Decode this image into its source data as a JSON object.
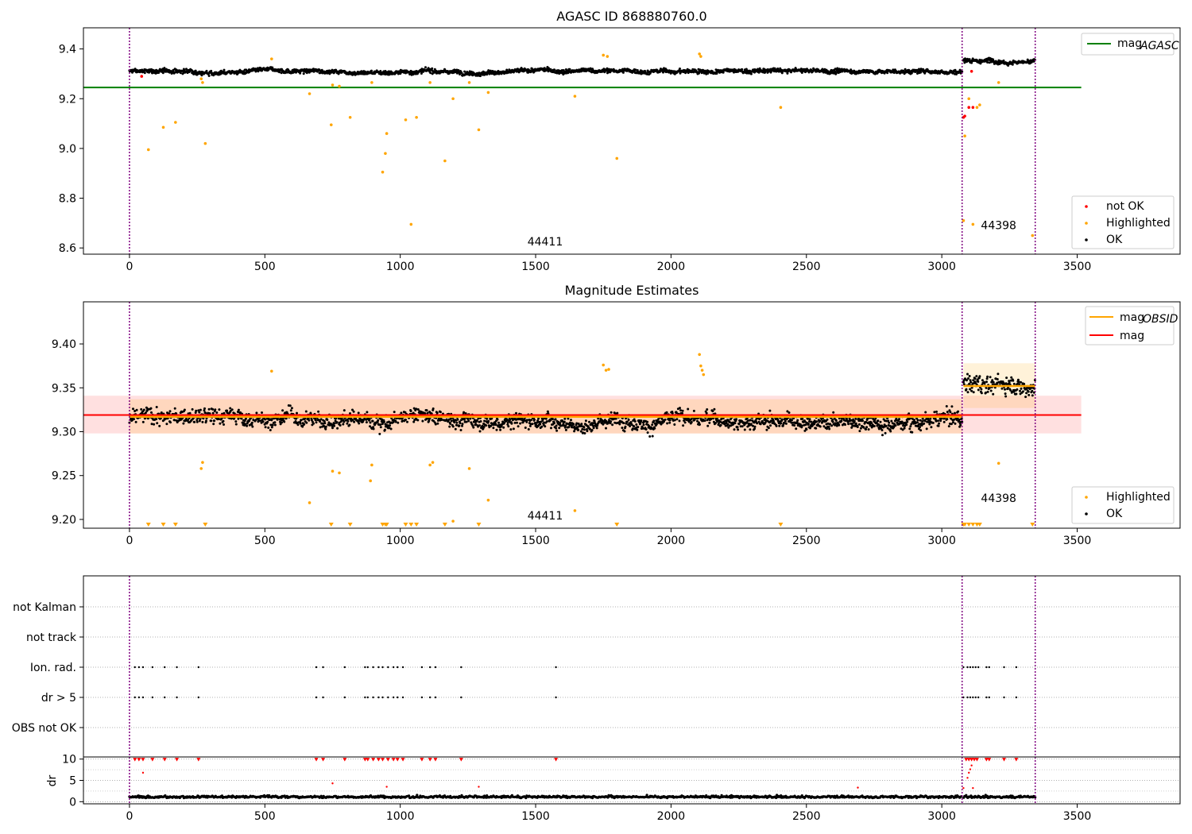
{
  "chart_data": [
    {
      "type": "scatter",
      "title": "AGASC ID 868880760.0",
      "xlabel": "",
      "ylabel": "",
      "xlim": [
        -170,
        3880
      ],
      "ylim": [
        8.575,
        9.485
      ],
      "xticks": [
        0,
        500,
        1000,
        1500,
        2000,
        2500,
        3000,
        3500
      ],
      "yticks": [
        8.6,
        8.8,
        9.0,
        9.2,
        9.4
      ],
      "ytick_labels": [
        "8.6",
        "8.8",
        "9.0",
        "9.2",
        "9.4"
      ],
      "obs_boundaries": [
        0,
        3075,
        3345
      ],
      "obs_labels": [
        {
          "text": "44411",
          "x": 1535,
          "y": 8.61
        },
        {
          "text": "44398",
          "x": 3210,
          "y": 8.675
        }
      ],
      "mag_agasc": {
        "value": 9.245,
        "x_range": [
          -170,
          3515
        ],
        "color": "#008000"
      },
      "ok_bands": [
        {
          "x0": 0,
          "x1": 3075,
          "center": 9.31,
          "spread": 0.018
        },
        {
          "x0": 3080,
          "x1": 3345,
          "center": 9.355,
          "spread": 0.02
        }
      ],
      "not_ok": [
        [
          45,
          9.29
        ],
        [
          3080,
          9.125
        ],
        [
          3085,
          9.13
        ],
        [
          3110,
          9.31
        ],
        [
          3100,
          9.165
        ],
        [
          3115,
          9.165
        ]
      ],
      "highlighted": [
        [
          70,
          8.995
        ],
        [
          125,
          9.085
        ],
        [
          170,
          9.105
        ],
        [
          280,
          9.02
        ],
        [
          265,
          9.28
        ],
        [
          270,
          9.265
        ],
        [
          525,
          9.36
        ],
        [
          665,
          9.22
        ],
        [
          745,
          9.095
        ],
        [
          750,
          9.255
        ],
        [
          775,
          9.25
        ],
        [
          815,
          9.125
        ],
        [
          895,
          9.265
        ],
        [
          935,
          8.905
        ],
        [
          945,
          8.98
        ],
        [
          950,
          9.06
        ],
        [
          1020,
          9.115
        ],
        [
          1040,
          8.695
        ],
        [
          1060,
          9.125
        ],
        [
          1110,
          9.265
        ],
        [
          1165,
          8.95
        ],
        [
          1195,
          9.2
        ],
        [
          1255,
          9.265
        ],
        [
          1290,
          9.075
        ],
        [
          1325,
          9.225
        ],
        [
          1645,
          9.21
        ],
        [
          1750,
          9.375
        ],
        [
          1765,
          9.37
        ],
        [
          1800,
          8.96
        ],
        [
          2105,
          9.38
        ],
        [
          2110,
          9.37
        ],
        [
          2405,
          9.165
        ],
        [
          3085,
          9.05
        ],
        [
          3080,
          8.71
        ],
        [
          3100,
          9.2
        ],
        [
          3130,
          9.165
        ],
        [
          3140,
          9.175
        ],
        [
          3115,
          8.695
        ],
        [
          3210,
          9.265
        ],
        [
          3335,
          8.65
        ]
      ],
      "legend_top": [
        {
          "label": "mag",
          "subscript": "AGASC",
          "color": "#008000"
        }
      ],
      "legend_bottom": [
        {
          "label": "not OK",
          "color": "#ff0000"
        },
        {
          "label": "Highlighted",
          "color": "#ffa500"
        },
        {
          "label": "OK",
          "color": "#000000"
        }
      ]
    },
    {
      "type": "scatter",
      "title": "Magnitude Estimates",
      "xlabel": "",
      "ylabel": "",
      "xlim": [
        -170,
        3880
      ],
      "ylim": [
        9.19,
        9.448
      ],
      "xticks": [
        0,
        500,
        1000,
        1500,
        2000,
        2500,
        3000,
        3500
      ],
      "yticks": [
        9.2,
        9.25,
        9.3,
        9.35,
        9.4
      ],
      "ytick_labels": [
        "9.20",
        "9.25",
        "9.30",
        "9.35",
        "9.40"
      ],
      "obs_boundaries": [
        0,
        3075,
        3345
      ],
      "obs_labels": [
        {
          "text": "44411",
          "x": 1535,
          "y": 9.2
        },
        {
          "text": "44398",
          "x": 3210,
          "y": 9.22
        }
      ],
      "mag": {
        "value": 9.319,
        "x_range": [
          -170,
          3515
        ],
        "band": [
          9.298,
          9.341
        ],
        "color": "#ff0000"
      },
      "mag_obsid": [
        {
          "x0": 0,
          "x1": 3075,
          "value": 9.317,
          "band": [
            9.298,
            9.337
          ]
        },
        {
          "x0": 3080,
          "x1": 3345,
          "value": 9.352,
          "band": [
            9.327,
            9.378
          ]
        }
      ],
      "ok_bands": [
        {
          "x0": 0,
          "x1": 3075,
          "center": 9.315,
          "spread": 0.018
        },
        {
          "x0": 3080,
          "x1": 3345,
          "center": 9.355,
          "spread": 0.022
        }
      ],
      "highlighted": [
        [
          265,
          9.258
        ],
        [
          270,
          9.265
        ],
        [
          525,
          9.369
        ],
        [
          665,
          9.219
        ],
        [
          750,
          9.255
        ],
        [
          775,
          9.253
        ],
        [
          890,
          9.244
        ],
        [
          895,
          9.262
        ],
        [
          1110,
          9.262
        ],
        [
          1120,
          9.265
        ],
        [
          1255,
          9.258
        ],
        [
          1325,
          9.222
        ],
        [
          1645,
          9.21
        ],
        [
          1750,
          9.376
        ],
        [
          1760,
          9.37
        ],
        [
          1770,
          9.371
        ],
        [
          2105,
          9.388
        ],
        [
          2110,
          9.375
        ],
        [
          2115,
          9.37
        ],
        [
          2120,
          9.365
        ],
        [
          3210,
          9.264
        ],
        [
          1195,
          9.198
        ]
      ],
      "clipped_markers_x": [
        70,
        125,
        170,
        280,
        745,
        815,
        935,
        945,
        950,
        1020,
        1040,
        1060,
        1165,
        1290,
        1800,
        2405,
        3080,
        3085,
        3100,
        3115,
        3130,
        3140,
        3335
      ],
      "legend_top": [
        {
          "label": "mag",
          "subscript": "OBSID",
          "color": "#ffa500"
        },
        {
          "label": "mag",
          "subscript": "",
          "color": "#ff0000"
        }
      ],
      "legend_bottom": [
        {
          "label": "Highlighted",
          "color": "#ffa500"
        },
        {
          "label": "OK",
          "color": "#000000"
        }
      ]
    },
    {
      "type": "scatter",
      "title": "",
      "xlim": [
        -170,
        3880
      ],
      "xticks": [
        0,
        500,
        1000,
        1500,
        2000,
        2500,
        3000,
        3500
      ],
      "flag_rows": [
        "not Kalman",
        "not track",
        "Ion. rad.",
        "dr > 5",
        "OBS not OK"
      ],
      "flag_x": [
        20,
        35,
        50,
        85,
        130,
        175,
        255,
        690,
        715,
        795,
        870,
        880,
        900,
        920,
        935,
        955,
        975,
        990,
        1010,
        1080,
        1110,
        1130,
        1225,
        1575,
        3080,
        3095,
        3105,
        3115,
        3125,
        3135,
        3165,
        3175,
        3230,
        3275
      ],
      "dr_ylabel": "dr",
      "dr_ylim": [
        -0.5,
        10.5
      ],
      "dr_yticks": [
        0,
        5,
        10
      ],
      "dr_ytick_labels": [
        "0",
        "5",
        "10"
      ],
      "dr_clipped_x": [
        20,
        35,
        50,
        85,
        130,
        175,
        255,
        690,
        715,
        795,
        870,
        880,
        900,
        920,
        935,
        955,
        975,
        990,
        1010,
        1080,
        1110,
        1130,
        1225,
        1575,
        3090,
        3100,
        3110,
        3120,
        3130,
        3165,
        3175,
        3230,
        3275
      ],
      "dr_outliers": [
        [
          50,
          6.8
        ],
        [
          750,
          4.3
        ],
        [
          950,
          3.5
        ],
        [
          1290,
          3.5
        ],
        [
          2690,
          3.3
        ],
        [
          3080,
          3.2
        ],
        [
          3095,
          5.6
        ],
        [
          3100,
          6.8
        ],
        [
          3105,
          7.6
        ],
        [
          3110,
          8.5
        ],
        [
          3115,
          3.2
        ]
      ],
      "dr_baseline": 1.0
    }
  ]
}
